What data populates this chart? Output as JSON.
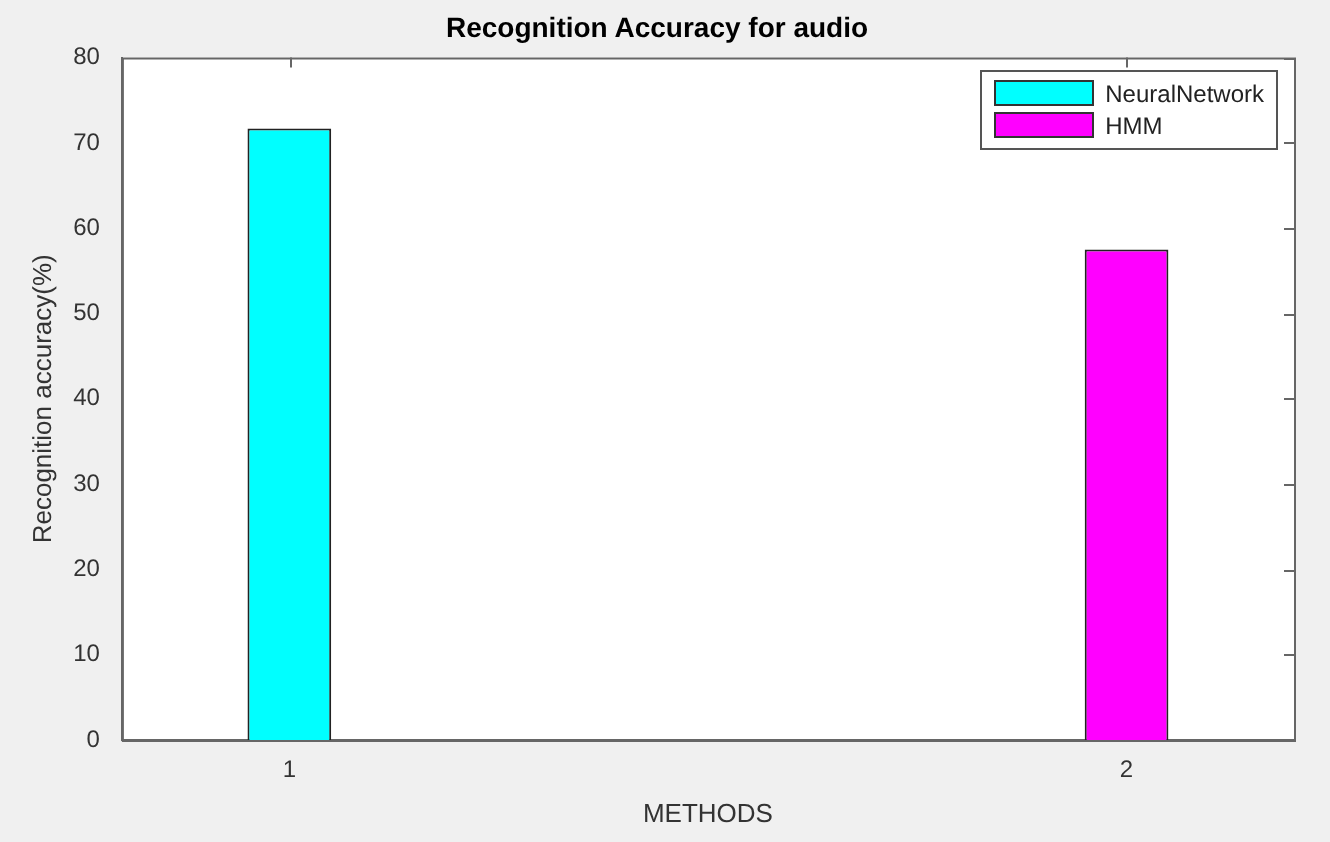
{
  "chart_data": {
    "type": "bar",
    "title": "Recognition Accuracy for audio",
    "xlabel": "METHODS",
    "ylabel": "Recognition accuracy(%)",
    "xlim": [
      0.8,
      2.2
    ],
    "xticks": [
      1,
      2
    ],
    "ylim": [
      0,
      80
    ],
    "yticks": [
      0,
      10,
      20,
      30,
      40,
      50,
      60,
      70,
      80
    ],
    "grid": false,
    "legend": "top right",
    "series": [
      {
        "name": "NeuralNetwork",
        "color": "#00ffff",
        "x": [
          1
        ],
        "values": [
          71.7
        ]
      },
      {
        "name": "HMM",
        "color": "#ff00ff",
        "x": [
          2
        ],
        "values": [
          57.5
        ]
      }
    ]
  }
}
